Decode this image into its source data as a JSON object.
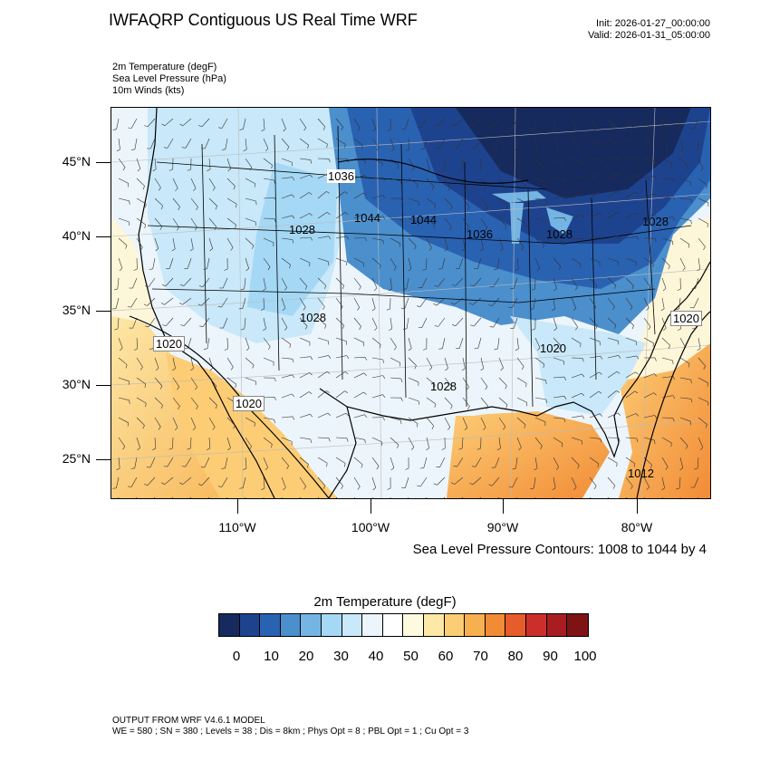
{
  "title": "IWFAQRP Contiguous US Real Time WRF",
  "init": "Init: 2026-01-27_00:00:00",
  "valid": "Valid: 2026-01-31_05:00:00",
  "fields": [
    "2m Temperature   (degF)",
    "Sea Level Pressure   (hPa)",
    "10m Winds   (kts)"
  ],
  "lat_labels": [
    "45°N",
    "40°N",
    "35°N",
    "30°N",
    "25°N"
  ],
  "lon_labels": [
    "110°W",
    "100°W",
    "90°W",
    "80°W"
  ],
  "pressure_labels": [
    "1036",
    "1044",
    "1044",
    "1036",
    "1028",
    "1028",
    "1028",
    "1028",
    "1020",
    "1020",
    "1020",
    "1020",
    "1028",
    "1012"
  ],
  "slp_caption": "Sea Level Pressure Contours: 1008 to 1044 by 4",
  "colorbar": {
    "title": "2m Temperature  (degF)",
    "labels": [
      "0",
      "10",
      "20",
      "30",
      "40",
      "50",
      "60",
      "70",
      "80",
      "90",
      "100"
    ],
    "colors": [
      "#162a5e",
      "#1e438e",
      "#2a62b2",
      "#4b8fcd",
      "#74b5e3",
      "#a5d8f5",
      "#c9e8f9",
      "#ecf5fb",
      "#ffffff",
      "#fefae0",
      "#fde8a8",
      "#fccd75",
      "#f7b04f",
      "#f28b36",
      "#e65c2b",
      "#cc2f2a",
      "#a71d22",
      "#7d1313"
    ]
  },
  "footer": {
    "line1": "OUTPUT FROM WRF V4.6.1 MODEL",
    "line2": "WE = 580 ; SN = 380 ; Levels = 38 ; Dis = 8km ; Phys Opt = 8 ; PBL Opt = 1 ; Cu Opt = 3"
  }
}
